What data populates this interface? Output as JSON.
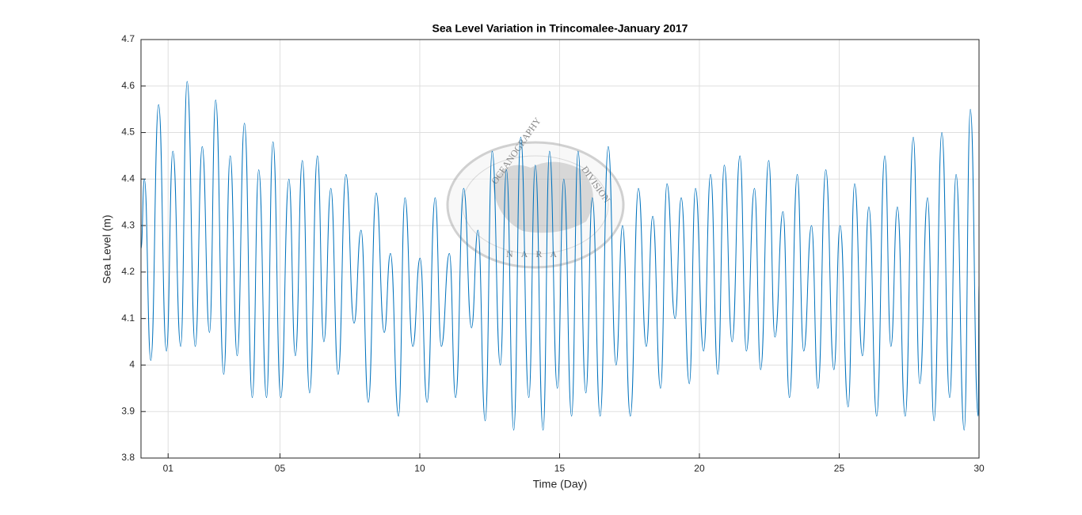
{
  "chart_data": {
    "type": "line",
    "title": "Sea Level Variation in Trincomalee-January 2017",
    "x_label": "Time (Day)",
    "y_label": "Sea Level (m)",
    "watermark": [
      "OCEANOGRAPHY",
      "DIVISION",
      "NARA"
    ],
    "xlim": [
      0.03,
      30
    ],
    "ylim": [
      3.8,
      4.7
    ],
    "xticks": [
      {
        "value": 1,
        "label": "01"
      },
      {
        "value": 5,
        "label": "05"
      },
      10,
      15,
      20,
      25,
      30
    ],
    "yticks": [
      3.8,
      3.9,
      4,
      4.1,
      4.2,
      4.3,
      4.4,
      4.5,
      4.6,
      4.7
    ],
    "grid": true,
    "x": [
      0.03,
      0.15,
      0.38,
      0.66,
      0.94,
      1.17,
      1.45,
      1.68,
      1.97,
      2.22,
      2.48,
      2.7,
      2.99,
      3.22,
      3.47,
      3.73,
      4.01,
      4.24,
      4.52,
      4.75,
      5.03,
      5.32,
      5.55,
      5.8,
      6.06,
      6.34,
      6.57,
      6.82,
      7.08,
      7.36,
      7.65,
      7.9,
      8.16,
      8.44,
      8.73,
      8.95,
      9.24,
      9.47,
      9.75,
      10.01,
      10.26,
      10.55,
      10.77,
      11.06,
      11.28,
      11.57,
      11.85,
      12.08,
      12.34,
      12.59,
      12.88,
      13.1,
      13.36,
      13.61,
      13.9,
      14.13,
      14.41,
      14.64,
      14.92,
      15.15,
      15.43,
      15.66,
      15.94,
      16.17,
      16.45,
      16.74,
      17.02,
      17.25,
      17.53,
      17.82,
      18.1,
      18.33,
      18.61,
      18.84,
      19.13,
      19.35,
      19.64,
      19.86,
      20.15,
      20.4,
      20.66,
      20.89,
      21.17,
      21.45,
      21.68,
      21.97,
      22.19,
      22.48,
      22.7,
      22.99,
      23.22,
      23.5,
      23.73,
      24.01,
      24.24,
      24.52,
      24.81,
      25.03,
      25.32,
      25.55,
      25.83,
      26.06,
      26.34,
      26.63,
      26.85,
      27.08,
      27.36,
      27.65,
      27.88,
      28.16,
      28.39,
      28.67,
      28.95,
      29.18,
      29.47,
      29.69,
      29.97,
      30.0
    ],
    "series": [
      {
        "name": "Sea Level",
        "color": "#0072bd",
        "values": [
          4.25,
          4.4,
          4.01,
          4.56,
          4.03,
          4.46,
          4.04,
          4.61,
          4.04,
          4.47,
          4.07,
          4.57,
          3.98,
          4.45,
          4.02,
          4.52,
          3.93,
          4.42,
          3.93,
          4.48,
          3.93,
          4.4,
          4.02,
          4.44,
          3.94,
          4.45,
          4.05,
          4.38,
          3.98,
          4.41,
          4.09,
          4.29,
          3.92,
          4.37,
          4.07,
          4.24,
          3.89,
          4.36,
          4.04,
          4.23,
          3.92,
          4.36,
          4.04,
          4.24,
          3.93,
          4.38,
          4.08,
          4.29,
          3.88,
          4.46,
          4.0,
          4.42,
          3.86,
          4.49,
          3.93,
          4.43,
          3.86,
          4.46,
          3.95,
          4.4,
          3.89,
          4.46,
          3.94,
          4.36,
          3.89,
          4.47,
          4.0,
          4.3,
          3.89,
          4.38,
          4.04,
          4.32,
          3.95,
          4.39,
          4.1,
          4.36,
          3.96,
          4.38,
          4.03,
          4.41,
          3.98,
          4.43,
          4.05,
          4.45,
          4.03,
          4.38,
          3.99,
          4.44,
          4.06,
          4.33,
          3.93,
          4.41,
          4.03,
          4.3,
          3.95,
          4.42,
          3.99,
          4.3,
          3.91,
          4.39,
          4.02,
          4.34,
          3.89,
          4.45,
          4.04,
          4.34,
          3.89,
          4.49,
          3.96,
          4.36,
          3.88,
          4.5,
          3.93,
          4.41,
          3.86,
          4.55,
          3.89,
          4.18
        ]
      }
    ]
  }
}
